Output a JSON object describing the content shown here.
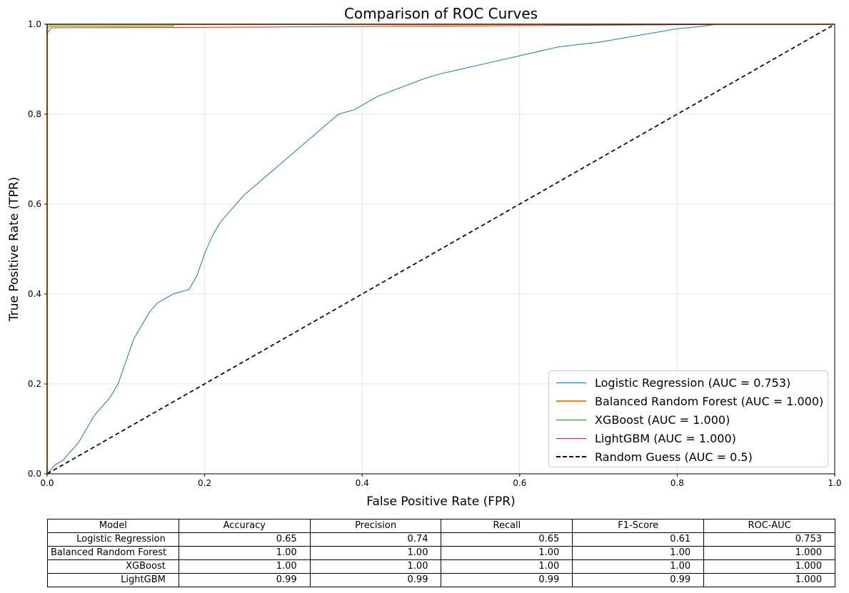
{
  "chart_data": {
    "type": "line",
    "title": "Comparison of ROC Curves",
    "xlabel": "False Positive Rate (FPR)",
    "ylabel": "True Positive Rate (TPR)",
    "xlim": [
      0,
      1
    ],
    "ylim": [
      0,
      1
    ],
    "grid": true,
    "legend_position": "lower-right",
    "x_ticks": [
      "0.0",
      "0.2",
      "0.4",
      "0.6",
      "0.8",
      "1.0"
    ],
    "y_ticks": [
      "0.0",
      "0.2",
      "0.4",
      "0.6",
      "0.8",
      "1.0"
    ],
    "series": [
      {
        "name": "Logistic Regression (AUC = 0.753)",
        "color": "#1f77b4",
        "style": "solid",
        "x": [
          0,
          0.005,
          0.01,
          0.02,
          0.03,
          0.04,
          0.05,
          0.06,
          0.07,
          0.08,
          0.09,
          0.1,
          0.11,
          0.12,
          0.13,
          0.14,
          0.15,
          0.16,
          0.18,
          0.19,
          0.2,
          0.21,
          0.22,
          0.23,
          0.25,
          0.27,
          0.29,
          0.31,
          0.33,
          0.35,
          0.37,
          0.39,
          0.42,
          0.45,
          0.48,
          0.5,
          0.55,
          0.6,
          0.65,
          0.7,
          0.75,
          0.8,
          0.83,
          0.85,
          0.88,
          1.0
        ],
        "y": [
          0,
          0.01,
          0.02,
          0.03,
          0.05,
          0.07,
          0.1,
          0.13,
          0.15,
          0.17,
          0.2,
          0.25,
          0.3,
          0.33,
          0.36,
          0.38,
          0.39,
          0.4,
          0.41,
          0.44,
          0.49,
          0.53,
          0.56,
          0.58,
          0.62,
          0.65,
          0.68,
          0.71,
          0.74,
          0.77,
          0.8,
          0.81,
          0.84,
          0.86,
          0.88,
          0.89,
          0.91,
          0.93,
          0.95,
          0.96,
          0.975,
          0.99,
          0.995,
          1.0,
          1.0,
          1.0
        ]
      },
      {
        "name": "Balanced Random Forest (AUC = 1.000)",
        "color": "#ff7f0e",
        "style": "solid",
        "x": [
          0,
          0,
          1
        ],
        "y": [
          0,
          1,
          1
        ]
      },
      {
        "name": "XGBoost (AUC = 1.000)",
        "color": "#2ca02c",
        "style": "solid",
        "x": [
          0,
          0,
          0.003,
          0.16,
          0.16,
          1
        ],
        "y": [
          0,
          0.99,
          0.996,
          0.996,
          1,
          1
        ]
      },
      {
        "name": "LightGBM (AUC = 1.000)",
        "color": "#d62728",
        "style": "solid",
        "x": [
          0,
          0,
          0.005,
          0.3,
          0.6,
          0.8,
          0.88,
          1
        ],
        "y": [
          0,
          0.98,
          0.992,
          0.994,
          0.997,
          0.999,
          1,
          1
        ]
      },
      {
        "name": "Random Guess (AUC = 0.5)",
        "color": "#000000",
        "style": "dashed",
        "x": [
          0,
          1
        ],
        "y": [
          0,
          1
        ]
      }
    ]
  },
  "table": {
    "headers": [
      "Model",
      "Accuracy",
      "Precision",
      "Recall",
      "F1-Score",
      "ROC-AUC"
    ],
    "rows": [
      [
        "Logistic Regression",
        "0.65",
        "0.74",
        "0.65",
        "0.61",
        "0.753"
      ],
      [
        "Balanced Random Forest",
        "1.00",
        "1.00",
        "1.00",
        "1.00",
        "1.000"
      ],
      [
        "XGBoost",
        "1.00",
        "1.00",
        "1.00",
        "1.00",
        "1.000"
      ],
      [
        "LightGBM",
        "0.99",
        "0.99",
        "0.99",
        "0.99",
        "1.000"
      ]
    ]
  }
}
